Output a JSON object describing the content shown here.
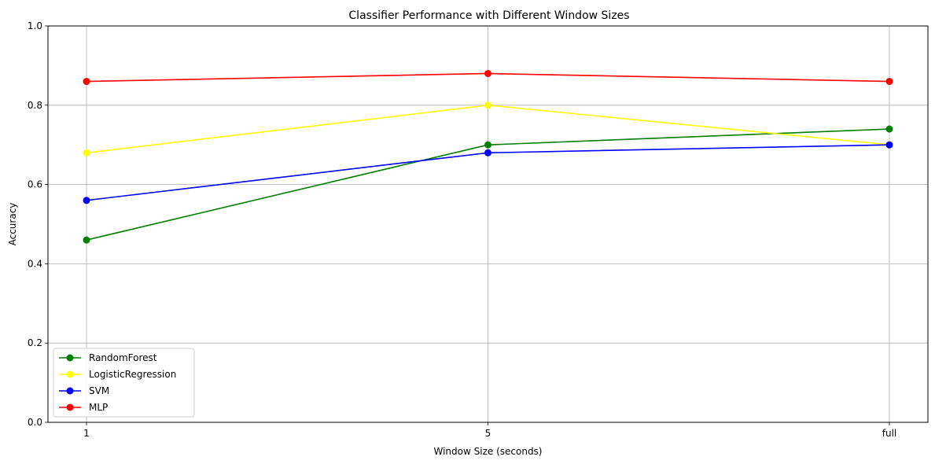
{
  "chart_data": {
    "type": "line",
    "title": "Classifier Performance with Different Window Sizes",
    "xlabel": "Window Size (seconds)",
    "ylabel": "Accuracy",
    "categories": [
      "1",
      "5",
      "full"
    ],
    "ylim": [
      0,
      1.0
    ],
    "yticks": [
      "0.0",
      "0.2",
      "0.4",
      "0.6",
      "0.8",
      "1.0"
    ],
    "grid": true,
    "legend_position": "lower-left",
    "series": [
      {
        "name": "RandomForest",
        "color": "#008000",
        "values": [
          0.46,
          0.7,
          0.74
        ]
      },
      {
        "name": "LogisticRegression",
        "color": "#ffff00",
        "values": [
          0.68,
          0.8,
          0.7
        ]
      },
      {
        "name": "SVM",
        "color": "#0000ff",
        "values": [
          0.56,
          0.68,
          0.7
        ]
      },
      {
        "name": "MLP",
        "color": "#ff0000",
        "values": [
          0.86,
          0.88,
          0.86
        ]
      }
    ]
  }
}
